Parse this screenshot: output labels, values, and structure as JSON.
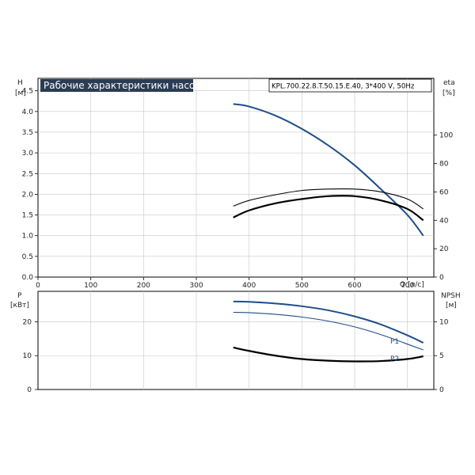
{
  "chart_data": [
    {
      "type": "line",
      "title": "Рабочие характеристики насоса",
      "model_label": "KPL.700.22.8.T.50.15.E.40, 3*400 V, 50Hz",
      "xlabel": "Q [л/с]",
      "ylabel": "H",
      "ylabel_unit": "[м]",
      "y2label": "eta",
      "y2label_unit": "[%]",
      "xlim": [
        0,
        750
      ],
      "ylim": [
        0,
        4.8
      ],
      "y2lim": [
        0,
        140
      ],
      "x_ticks": [
        "0",
        "100",
        "200",
        "300",
        "400",
        "500",
        "600",
        "700"
      ],
      "y_ticks": [
        "0.0",
        "0.5",
        "1.0",
        "1.5",
        "2.0",
        "2.5",
        "3.0",
        "3.5",
        "4.0",
        "4.5"
      ],
      "y2_ticks": [
        "0",
        "20",
        "40",
        "60",
        "80",
        "100"
      ],
      "grid": true,
      "series": [
        {
          "name": "",
          "axis": "left",
          "color": "#1f4e89",
          "x": [
            370,
            400,
            450,
            500,
            550,
            600,
            650,
            700,
            730
          ],
          "y": [
            4.18,
            4.12,
            3.9,
            3.58,
            3.18,
            2.7,
            2.12,
            1.5,
            1.0
          ]
        },
        {
          "name": "",
          "axis": "right",
          "color": "#000000",
          "x": [
            370,
            400,
            450,
            500,
            550,
            600,
            650,
            700,
            730
          ],
          "y": [
            42,
            47,
            52,
            55,
            57,
            57,
            54,
            48,
            40
          ]
        },
        {
          "name": "",
          "axis": "right",
          "color": "#000000",
          "x": [
            370,
            400,
            450,
            500,
            550,
            600,
            650,
            700,
            730
          ],
          "y": [
            50,
            54,
            58,
            61,
            62,
            62,
            60,
            55,
            48
          ]
        }
      ]
    },
    {
      "type": "line",
      "ylabel": "P",
      "ylabel_unit": "[кВт]",
      "y2label": "NPSH",
      "y2label_unit": "[м]",
      "xlim": [
        0,
        750
      ],
      "ylim": [
        0,
        29
      ],
      "y2lim": [
        0,
        14.5
      ],
      "y_ticks": [
        "0",
        "10",
        "20"
      ],
      "y2_ticks": [
        "0",
        "5",
        "10"
      ],
      "grid": true,
      "series_labels": [
        "P1",
        "P2"
      ],
      "series": [
        {
          "name": "P1",
          "axis": "left",
          "color": "#1f4e89",
          "x": [
            370,
            400,
            450,
            500,
            550,
            600,
            650,
            700,
            730
          ],
          "y": [
            26.0,
            25.9,
            25.4,
            24.6,
            23.4,
            21.6,
            19.2,
            16.0,
            13.8
          ]
        },
        {
          "name": "P2",
          "axis": "left",
          "color": "#1f4e89",
          "x": [
            370,
            400,
            450,
            500,
            550,
            600,
            650,
            700,
            730
          ],
          "y": [
            22.8,
            22.7,
            22.2,
            21.4,
            20.2,
            18.5,
            16.2,
            13.4,
            11.7
          ]
        },
        {
          "name": "",
          "axis": "right",
          "color": "#000000",
          "x": [
            370,
            400,
            450,
            500,
            550,
            600,
            650,
            700,
            730
          ],
          "y": [
            6.2,
            5.7,
            5.0,
            4.5,
            4.25,
            4.15,
            4.2,
            4.5,
            4.9
          ]
        }
      ]
    }
  ]
}
